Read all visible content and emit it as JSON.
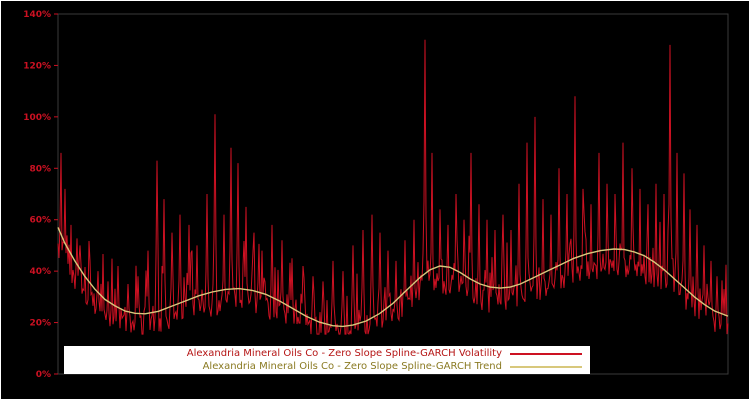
{
  "window": {
    "background": "#000000",
    "frame_border": "#ffffff"
  },
  "chart_data": {
    "type": "line",
    "title": "",
    "x_axis": {
      "label": "",
      "tick_labels": []
    },
    "y_axis": {
      "min": 0,
      "max": 140,
      "tick_step": 20,
      "unit": "%",
      "tick_labels": [
        "0%",
        "20%",
        "40%",
        "60%",
        "80%",
        "100%",
        "120%",
        "140%"
      ],
      "label_color": "#cc1122"
    },
    "series": [
      {
        "name": "Alexandria Mineral Oils Co - Zero Slope Spline-GARCH Volatility",
        "color": "#cc1122",
        "type": "spiky-line",
        "texture": {
          "samples": 670,
          "baseline_factor": 0.88,
          "baseline_offset": -2,
          "jitter": 4,
          "burst": 20,
          "floor": 15.5
        },
        "spikes": [
          [
            0.004,
            86
          ],
          [
            0.01,
            72
          ],
          [
            0.02,
            58
          ],
          [
            0.033,
            50
          ],
          [
            0.048,
            44
          ],
          [
            0.06,
            40
          ],
          [
            0.075,
            36
          ],
          [
            0.09,
            42
          ],
          [
            0.105,
            35
          ],
          [
            0.12,
            38
          ],
          [
            0.135,
            48
          ],
          [
            0.148,
            83
          ],
          [
            0.158,
            68
          ],
          [
            0.17,
            55
          ],
          [
            0.182,
            62
          ],
          [
            0.195,
            58
          ],
          [
            0.208,
            50
          ],
          [
            0.222,
            70
          ],
          [
            0.235,
            101
          ],
          [
            0.248,
            62
          ],
          [
            0.258,
            88
          ],
          [
            0.268,
            82
          ],
          [
            0.28,
            65
          ],
          [
            0.292,
            55
          ],
          [
            0.305,
            48
          ],
          [
            0.32,
            58
          ],
          [
            0.335,
            52
          ],
          [
            0.35,
            45
          ],
          [
            0.365,
            42
          ],
          [
            0.38,
            38
          ],
          [
            0.395,
            36
          ],
          [
            0.41,
            44
          ],
          [
            0.425,
            40
          ],
          [
            0.44,
            50
          ],
          [
            0.455,
            56
          ],
          [
            0.468,
            62
          ],
          [
            0.48,
            55
          ],
          [
            0.492,
            48
          ],
          [
            0.505,
            44
          ],
          [
            0.518,
            52
          ],
          [
            0.532,
            60
          ],
          [
            0.548,
            130
          ],
          [
            0.558,
            86
          ],
          [
            0.57,
            64
          ],
          [
            0.582,
            58
          ],
          [
            0.594,
            70
          ],
          [
            0.606,
            60
          ],
          [
            0.617,
            86
          ],
          [
            0.628,
            66
          ],
          [
            0.64,
            60
          ],
          [
            0.652,
            56
          ],
          [
            0.664,
            62
          ],
          [
            0.676,
            56
          ],
          [
            0.688,
            74
          ],
          [
            0.7,
            90
          ],
          [
            0.712,
            100
          ],
          [
            0.724,
            68
          ],
          [
            0.736,
            62
          ],
          [
            0.748,
            80
          ],
          [
            0.76,
            70
          ],
          [
            0.772,
            108
          ],
          [
            0.784,
            72
          ],
          [
            0.796,
            66
          ],
          [
            0.808,
            86
          ],
          [
            0.82,
            74
          ],
          [
            0.832,
            70
          ],
          [
            0.844,
            90
          ],
          [
            0.856,
            80
          ],
          [
            0.868,
            72
          ],
          [
            0.88,
            66
          ],
          [
            0.892,
            74
          ],
          [
            0.904,
            70
          ],
          [
            0.914,
            128
          ],
          [
            0.924,
            86
          ],
          [
            0.934,
            78
          ],
          [
            0.944,
            64
          ],
          [
            0.954,
            58
          ],
          [
            0.964,
            50
          ],
          [
            0.974,
            44
          ],
          [
            0.984,
            38
          ],
          [
            0.994,
            33
          ]
        ]
      },
      {
        "name": "Alexandria Mineral Oils Co - Zero Slope Spline-GARCH Trend",
        "color": "#d8c87c",
        "type": "smooth-line",
        "points": [
          [
            0.0,
            57.0
          ],
          [
            0.01,
            51.0
          ],
          [
            0.025,
            44.0
          ],
          [
            0.04,
            38.0
          ],
          [
            0.055,
            33.0
          ],
          [
            0.07,
            29.0
          ],
          [
            0.085,
            26.5
          ],
          [
            0.1,
            24.5
          ],
          [
            0.115,
            23.6
          ],
          [
            0.13,
            23.4
          ],
          [
            0.15,
            24.4
          ],
          [
            0.17,
            26.4
          ],
          [
            0.19,
            28.4
          ],
          [
            0.21,
            30.4
          ],
          [
            0.23,
            31.9
          ],
          [
            0.25,
            32.9
          ],
          [
            0.27,
            33.2
          ],
          [
            0.29,
            32.5
          ],
          [
            0.31,
            31.0
          ],
          [
            0.33,
            28.5
          ],
          [
            0.35,
            25.5
          ],
          [
            0.37,
            22.5
          ],
          [
            0.39,
            20.2
          ],
          [
            0.41,
            18.8
          ],
          [
            0.425,
            18.5
          ],
          [
            0.44,
            19.0
          ],
          [
            0.46,
            20.6
          ],
          [
            0.48,
            23.5
          ],
          [
            0.5,
            27.5
          ],
          [
            0.52,
            32.5
          ],
          [
            0.54,
            37.5
          ],
          [
            0.555,
            40.5
          ],
          [
            0.57,
            42.0
          ],
          [
            0.585,
            41.5
          ],
          [
            0.6,
            39.5
          ],
          [
            0.615,
            37.0
          ],
          [
            0.63,
            35.0
          ],
          [
            0.645,
            33.8
          ],
          [
            0.66,
            33.4
          ],
          [
            0.675,
            33.8
          ],
          [
            0.69,
            35.0
          ],
          [
            0.71,
            37.5
          ],
          [
            0.73,
            40.0
          ],
          [
            0.75,
            42.5
          ],
          [
            0.77,
            45.0
          ],
          [
            0.79,
            46.8
          ],
          [
            0.81,
            48.0
          ],
          [
            0.83,
            48.6
          ],
          [
            0.845,
            48.4
          ],
          [
            0.86,
            47.5
          ],
          [
            0.875,
            46.0
          ],
          [
            0.89,
            43.5
          ],
          [
            0.905,
            40.5
          ],
          [
            0.92,
            37.0
          ],
          [
            0.935,
            33.5
          ],
          [
            0.95,
            30.0
          ],
          [
            0.965,
            27.0
          ],
          [
            0.98,
            24.5
          ],
          [
            1.0,
            22.5
          ]
        ]
      }
    ],
    "legend": {
      "position": "bottom-center",
      "background": "#ffffff",
      "entries": [
        {
          "label": "Alexandria Mineral Oils Co - Zero Slope Spline-GARCH Volatility",
          "text_color": "#b51515",
          "line_color": "#cc1122"
        },
        {
          "label": "Alexandria Mineral Oils Co - Zero Slope Spline-GARCH Trend",
          "text_color": "#8a7a22",
          "line_color": "#d8c87c"
        }
      ]
    }
  }
}
